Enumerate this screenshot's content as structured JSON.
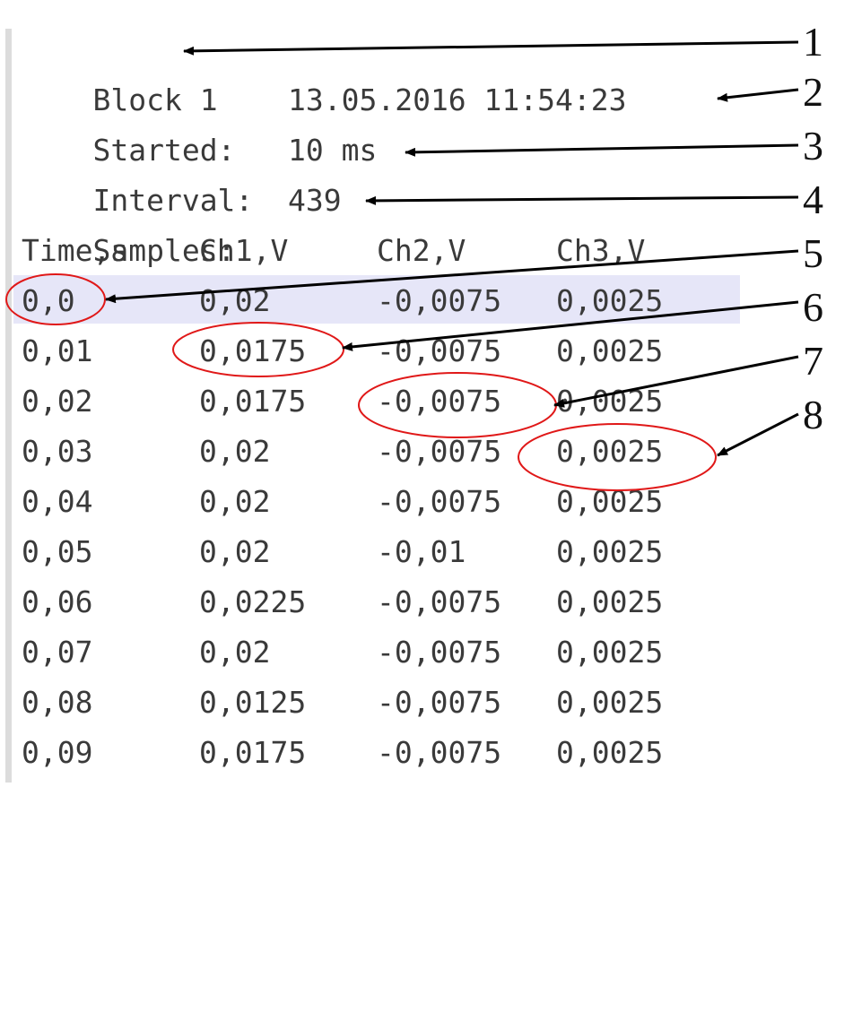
{
  "header": {
    "block": "Block 1",
    "started_label": "Started:",
    "started_value": "13.05.2016 11:54:23",
    "interval_label": "Interval:",
    "interval_value": "10 ms",
    "samples_label": "Samples:",
    "samples_value": "439"
  },
  "table": {
    "columns": [
      "Time,s",
      "Ch1,V",
      "Ch2,V",
      "Ch3,V"
    ],
    "rows": [
      [
        "0,0",
        "0,02",
        "-0,0075",
        "0,0025"
      ],
      [
        "0,01",
        "0,0175",
        "-0,0075",
        "0,0025"
      ],
      [
        "0,02",
        "0,0175",
        "-0,0075",
        "0,0025"
      ],
      [
        "0,03",
        "0,02",
        "-0,0075",
        "0,0025"
      ],
      [
        "0,04",
        "0,02",
        "-0,0075",
        "0,0025"
      ],
      [
        "0,05",
        "0,02",
        "-0,01",
        "0,0025"
      ],
      [
        "0,06",
        "0,0225",
        "-0,0075",
        "0,0025"
      ],
      [
        "0,07",
        "0,02",
        "-0,0075",
        "0,0025"
      ],
      [
        "0,08",
        "0,0125",
        "-0,0075",
        "0,0025"
      ],
      [
        "0,09",
        "0,0175",
        "-0,0075",
        "0,0025"
      ]
    ]
  },
  "callouts": [
    "1",
    "2",
    "3",
    "4",
    "5",
    "6",
    "7",
    "8"
  ],
  "colors": {
    "text": "#3a3a3a",
    "highlight": "#e6e6f8",
    "circle": "#e01818",
    "arrow": "#000000"
  }
}
